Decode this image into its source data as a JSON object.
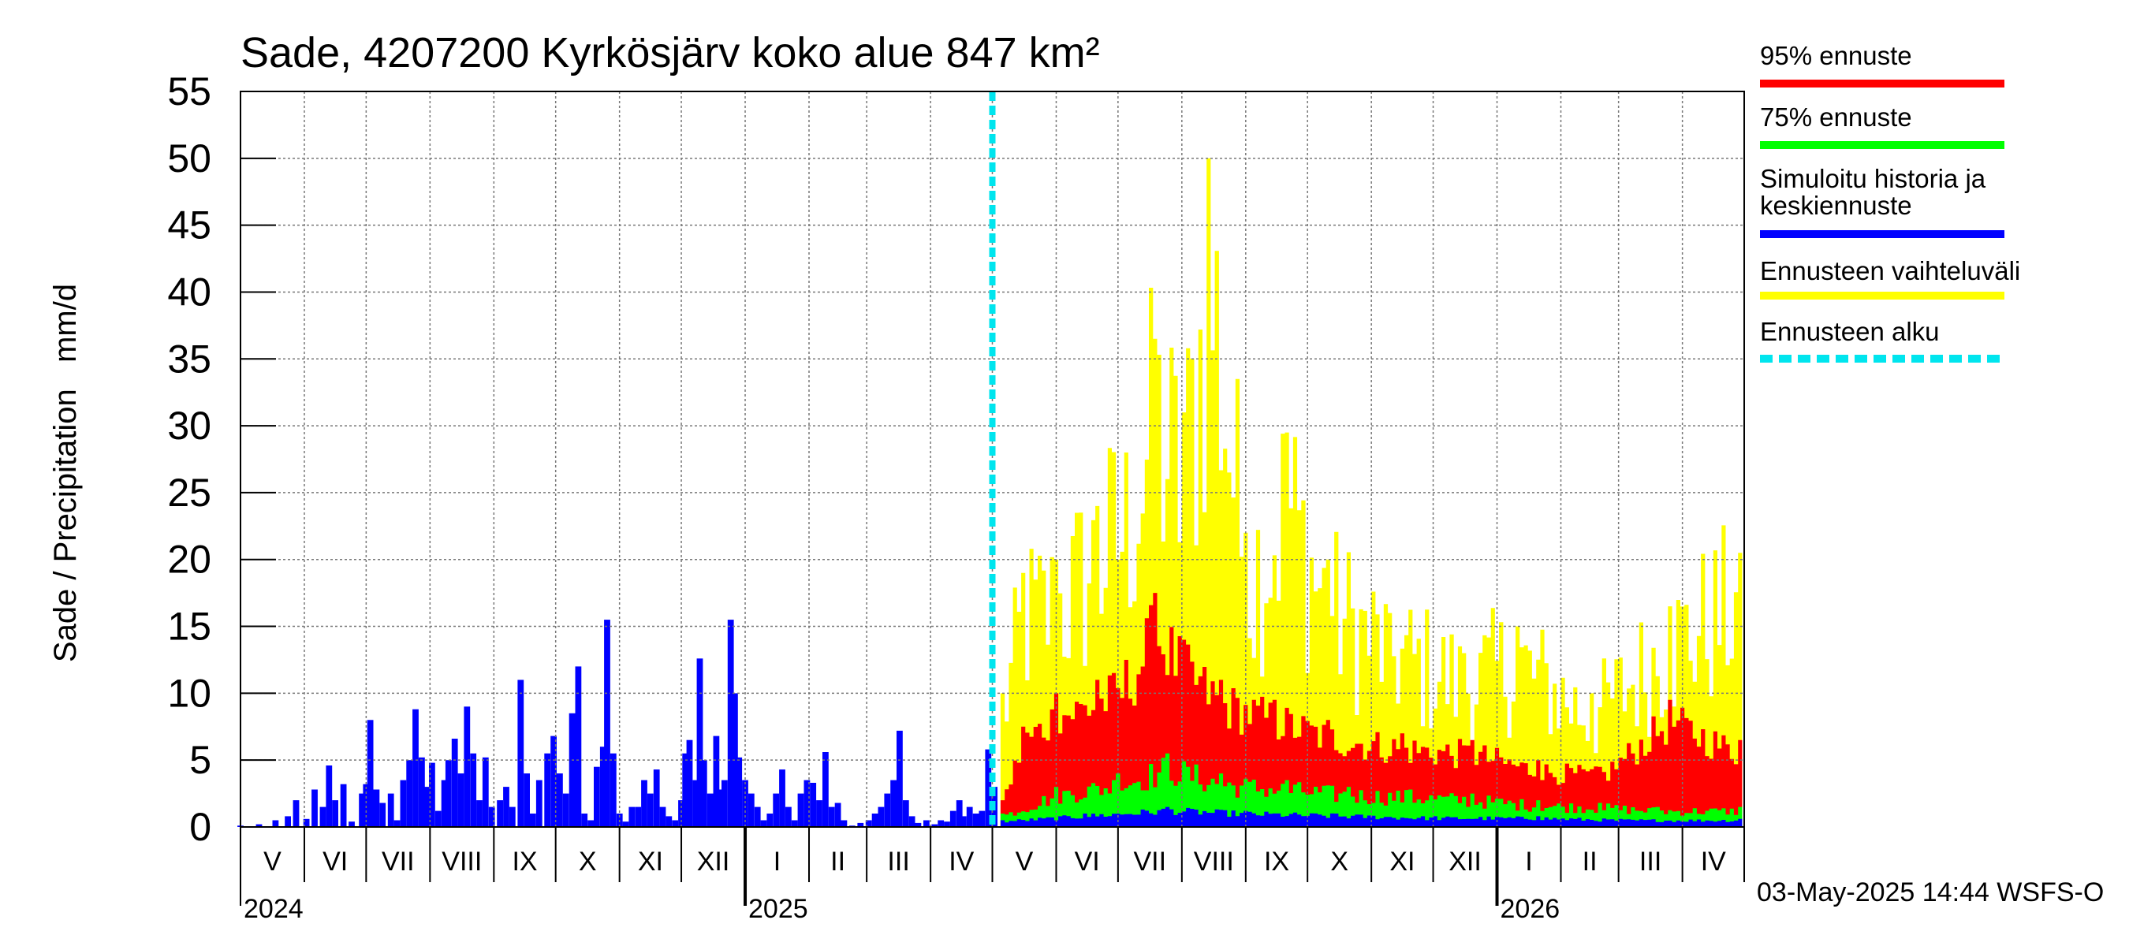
{
  "chart_data": {
    "type": "bar",
    "title": "Sade, 4207200 Kyrkösjärv koko alue 847 km²",
    "ylabel": "Sade / Precipitation   mm/d",
    "ylim": [
      0,
      55
    ],
    "y_ticks": [
      "0",
      "5",
      "10",
      "15",
      "20",
      "25",
      "30",
      "35",
      "40",
      "45",
      "50",
      "55"
    ],
    "x_range": [
      "2024-05-01",
      "2026-04-30"
    ],
    "forecast_start": "2025-05-03",
    "grid": true,
    "legend_position": "right",
    "months": [
      {
        "label": "V",
        "start": "2024-05-01"
      },
      {
        "label": "VI",
        "start": "2024-06-01"
      },
      {
        "label": "VII",
        "start": "2024-07-01"
      },
      {
        "label": "VIII",
        "start": "2024-08-01"
      },
      {
        "label": "IX",
        "start": "2024-09-01"
      },
      {
        "label": "X",
        "start": "2024-10-01"
      },
      {
        "label": "XI",
        "start": "2024-11-01"
      },
      {
        "label": "XII",
        "start": "2024-12-01"
      },
      {
        "label": "I",
        "start": "2025-01-01"
      },
      {
        "label": "II",
        "start": "2025-02-01"
      },
      {
        "label": "III",
        "start": "2025-03-01"
      },
      {
        "label": "IV",
        "start": "2025-04-01"
      },
      {
        "label": "V",
        "start": "2025-05-01"
      },
      {
        "label": "VI",
        "start": "2025-06-01"
      },
      {
        "label": "VII",
        "start": "2025-07-01"
      },
      {
        "label": "VIII",
        "start": "2025-08-01"
      },
      {
        "label": "IX",
        "start": "2025-09-01"
      },
      {
        "label": "X",
        "start": "2025-10-01"
      },
      {
        "label": "XI",
        "start": "2025-11-01"
      },
      {
        "label": "XII",
        "start": "2025-12-01"
      },
      {
        "label": "I",
        "start": "2026-01-01"
      },
      {
        "label": "II",
        "start": "2026-02-01"
      },
      {
        "label": "III",
        "start": "2026-03-01"
      },
      {
        "label": "IV",
        "start": "2026-04-01"
      }
    ],
    "years": [
      {
        "label": "2024",
        "date": "2024-05-01"
      },
      {
        "label": "2025",
        "date": "2025-01-01"
      },
      {
        "label": "2026",
        "date": "2026-01-01"
      }
    ],
    "history": {
      "name": "Simuloitu historia ja keskiennuste",
      "color": "#0000ff",
      "points": [
        [
          "2024-05-01",
          0.1
        ],
        [
          "2024-05-10",
          0.2
        ],
        [
          "2024-05-18",
          0.5
        ],
        [
          "2024-05-24",
          0.8
        ],
        [
          "2024-05-28",
          2.0
        ],
        [
          "2024-06-02",
          0.6
        ],
        [
          "2024-06-06",
          2.8
        ],
        [
          "2024-06-10",
          1.5
        ],
        [
          "2024-06-13",
          4.6
        ],
        [
          "2024-06-16",
          2.0
        ],
        [
          "2024-06-20",
          3.2
        ],
        [
          "2024-06-24",
          0.4
        ],
        [
          "2024-06-29",
          2.5
        ],
        [
          "2024-07-01",
          3.2
        ],
        [
          "2024-07-03",
          8.0
        ],
        [
          "2024-07-06",
          2.8
        ],
        [
          "2024-07-09",
          1.8
        ],
        [
          "2024-07-13",
          2.5
        ],
        [
          "2024-07-16",
          0.5
        ],
        [
          "2024-07-19",
          3.5
        ],
        [
          "2024-07-22",
          5.0
        ],
        [
          "2024-07-25",
          8.8
        ],
        [
          "2024-07-28",
          5.2
        ],
        [
          "2024-07-30",
          3.0
        ],
        [
          "2024-08-02",
          4.8
        ],
        [
          "2024-08-05",
          1.2
        ],
        [
          "2024-08-08",
          3.5
        ],
        [
          "2024-08-10",
          5.0
        ],
        [
          "2024-08-13",
          6.6
        ],
        [
          "2024-08-16",
          4.0
        ],
        [
          "2024-08-19",
          9.0
        ],
        [
          "2024-08-22",
          5.5
        ],
        [
          "2024-08-25",
          2.0
        ],
        [
          "2024-08-28",
          5.2
        ],
        [
          "2024-08-31",
          1.5
        ],
        [
          "2024-09-04",
          2.0
        ],
        [
          "2024-09-07",
          3.0
        ],
        [
          "2024-09-10",
          1.5
        ],
        [
          "2024-09-14",
          11.0
        ],
        [
          "2024-09-17",
          4.0
        ],
        [
          "2024-09-20",
          1.0
        ],
        [
          "2024-09-23",
          3.5
        ],
        [
          "2024-09-27",
          5.5
        ],
        [
          "2024-09-30",
          6.8
        ],
        [
          "2024-10-03",
          4.0
        ],
        [
          "2024-10-06",
          2.5
        ],
        [
          "2024-10-09",
          8.5
        ],
        [
          "2024-10-12",
          12.0
        ],
        [
          "2024-10-15",
          1.0
        ],
        [
          "2024-10-18",
          0.5
        ],
        [
          "2024-10-21",
          4.5
        ],
        [
          "2024-10-24",
          6.0
        ],
        [
          "2024-10-26",
          15.5
        ],
        [
          "2024-10-29",
          5.5
        ],
        [
          "2024-11-01",
          1.0
        ],
        [
          "2024-11-04",
          0.4
        ],
        [
          "2024-11-07",
          1.5
        ],
        [
          "2024-11-10",
          1.5
        ],
        [
          "2024-11-13",
          3.5
        ],
        [
          "2024-11-16",
          2.5
        ],
        [
          "2024-11-19",
          4.3
        ],
        [
          "2024-11-22",
          1.5
        ],
        [
          "2024-11-25",
          0.8
        ],
        [
          "2024-11-28",
          0.5
        ],
        [
          "2024-12-01",
          2.0
        ],
        [
          "2024-12-03",
          5.5
        ],
        [
          "2024-12-05",
          6.5
        ],
        [
          "2024-12-08",
          3.5
        ],
        [
          "2024-12-10",
          12.6
        ],
        [
          "2024-12-12",
          5.0
        ],
        [
          "2024-12-15",
          2.5
        ],
        [
          "2024-12-18",
          6.8
        ],
        [
          "2024-12-20",
          2.8
        ],
        [
          "2024-12-22",
          3.5
        ],
        [
          "2024-12-25",
          15.5
        ],
        [
          "2024-12-27",
          10.0
        ],
        [
          "2024-12-29",
          5.2
        ],
        [
          "2025-01-01",
          3.5
        ],
        [
          "2025-01-04",
          2.5
        ],
        [
          "2025-01-07",
          1.5
        ],
        [
          "2025-01-10",
          0.5
        ],
        [
          "2025-01-13",
          1.0
        ],
        [
          "2025-01-16",
          2.5
        ],
        [
          "2025-01-19",
          4.3
        ],
        [
          "2025-01-22",
          1.5
        ],
        [
          "2025-01-25",
          0.5
        ],
        [
          "2025-01-28",
          2.5
        ],
        [
          "2025-01-31",
          3.5
        ],
        [
          "2025-02-03",
          3.3
        ],
        [
          "2025-02-06",
          2.0
        ],
        [
          "2025-02-09",
          5.6
        ],
        [
          "2025-02-12",
          1.5
        ],
        [
          "2025-02-15",
          1.8
        ],
        [
          "2025-02-18",
          0.5
        ],
        [
          "2025-02-22",
          0.1
        ],
        [
          "2025-02-26",
          0.3
        ],
        [
          "2025-03-02",
          0.5
        ],
        [
          "2025-03-05",
          1.0
        ],
        [
          "2025-03-08",
          1.5
        ],
        [
          "2025-03-11",
          2.5
        ],
        [
          "2025-03-14",
          3.5
        ],
        [
          "2025-03-17",
          7.2
        ],
        [
          "2025-03-20",
          2.0
        ],
        [
          "2025-03-23",
          0.8
        ],
        [
          "2025-03-26",
          0.3
        ],
        [
          "2025-03-30",
          0.5
        ],
        [
          "2025-04-03",
          0.2
        ],
        [
          "2025-04-06",
          0.5
        ],
        [
          "2025-04-09",
          0.4
        ],
        [
          "2025-04-12",
          1.2
        ],
        [
          "2025-04-15",
          2.0
        ],
        [
          "2025-04-17",
          0.8
        ],
        [
          "2025-04-20",
          1.5
        ],
        [
          "2025-04-23",
          1.0
        ],
        [
          "2025-04-26",
          1.2
        ],
        [
          "2025-04-29",
          5.8
        ],
        [
          "2025-05-02",
          3.0
        ]
      ]
    },
    "forecast": {
      "variation_range": {
        "name": "Ennusteen vaihteluväli",
        "color": "#ffff00",
        "points": [
          [
            "2025-05-05",
            10.0
          ],
          [
            "2025-05-15",
            19.0
          ],
          [
            "2025-06-01",
            20.0
          ],
          [
            "2025-06-20",
            24.0
          ],
          [
            "2025-07-05",
            28.0
          ],
          [
            "2025-07-18",
            36.5
          ],
          [
            "2025-08-01",
            31.0
          ],
          [
            "2025-08-14",
            50.0
          ],
          [
            "2025-09-01",
            22.0
          ],
          [
            "2025-09-20",
            29.5
          ],
          [
            "2025-10-10",
            20.0
          ],
          [
            "2025-11-10",
            16.0
          ],
          [
            "2025-12-15",
            13.0
          ],
          [
            "2026-01-10",
            15.0
          ],
          [
            "2026-02-15",
            10.0
          ],
          [
            "2026-03-25",
            16.5
          ],
          [
            "2026-04-28",
            20.5
          ]
        ]
      },
      "p95": {
        "name": "95% ennuste",
        "color": "#ff0000",
        "points": [
          [
            "2025-05-05",
            2.0
          ],
          [
            "2025-05-15",
            7.5
          ],
          [
            "2025-06-01",
            10.0
          ],
          [
            "2025-06-20",
            11.0
          ],
          [
            "2025-07-05",
            12.5
          ],
          [
            "2025-07-18",
            17.5
          ],
          [
            "2025-08-01",
            14.0
          ],
          [
            "2025-08-20",
            11.0
          ],
          [
            "2025-09-15",
            9.5
          ],
          [
            "2025-10-10",
            8.0
          ],
          [
            "2025-11-15",
            7.0
          ],
          [
            "2025-12-20",
            6.5
          ],
          [
            "2026-01-20",
            5.0
          ],
          [
            "2026-02-20",
            4.5
          ],
          [
            "2026-03-25",
            9.5
          ],
          [
            "2026-04-28",
            6.5
          ]
        ]
      },
      "p75": {
        "name": "75% ennuste",
        "color": "#00ff00",
        "points": [
          [
            "2025-05-05",
            1.0
          ],
          [
            "2025-06-01",
            3.0
          ],
          [
            "2025-07-01",
            4.0
          ],
          [
            "2025-07-25",
            5.5
          ],
          [
            "2025-08-20",
            4.0
          ],
          [
            "2025-09-20",
            3.5
          ],
          [
            "2025-10-20",
            3.0
          ],
          [
            "2025-11-20",
            2.8
          ],
          [
            "2025-12-20",
            2.5
          ],
          [
            "2026-01-20",
            2.0
          ],
          [
            "2026-02-20",
            1.8
          ],
          [
            "2026-03-20",
            1.5
          ],
          [
            "2026-04-28",
            1.5
          ]
        ]
      },
      "median": {
        "name": "Simuloitu historia ja keskiennuste",
        "color": "#0000ff",
        "points": [
          [
            "2025-05-05",
            0.5
          ],
          [
            "2025-06-15",
            1.0
          ],
          [
            "2025-07-25",
            1.5
          ],
          [
            "2025-09-01",
            1.2
          ],
          [
            "2025-10-15",
            1.0
          ],
          [
            "2025-12-01",
            0.8
          ],
          [
            "2026-01-20",
            0.8
          ],
          [
            "2026-03-01",
            0.6
          ],
          [
            "2026-04-28",
            0.6
          ]
        ]
      }
    },
    "legend": [
      {
        "label": "95% ennuste",
        "color": "#ff0000",
        "style": "solid"
      },
      {
        "label": "75% ennuste",
        "color": "#00ff00",
        "style": "solid"
      },
      {
        "label": "Simuloitu historia ja keskiennuste",
        "lines": [
          "Simuloitu historia ja",
          "keskiennuste"
        ],
        "color": "#0000ff",
        "style": "solid"
      },
      {
        "label": "Ennusteen vaihteluväli",
        "color": "#ffff00",
        "style": "solid"
      },
      {
        "label": "Ennusteen alku",
        "color": "#00e5ee",
        "style": "dashed"
      }
    ],
    "timestamp": "03-May-2025 14:44 WSFS-O"
  }
}
